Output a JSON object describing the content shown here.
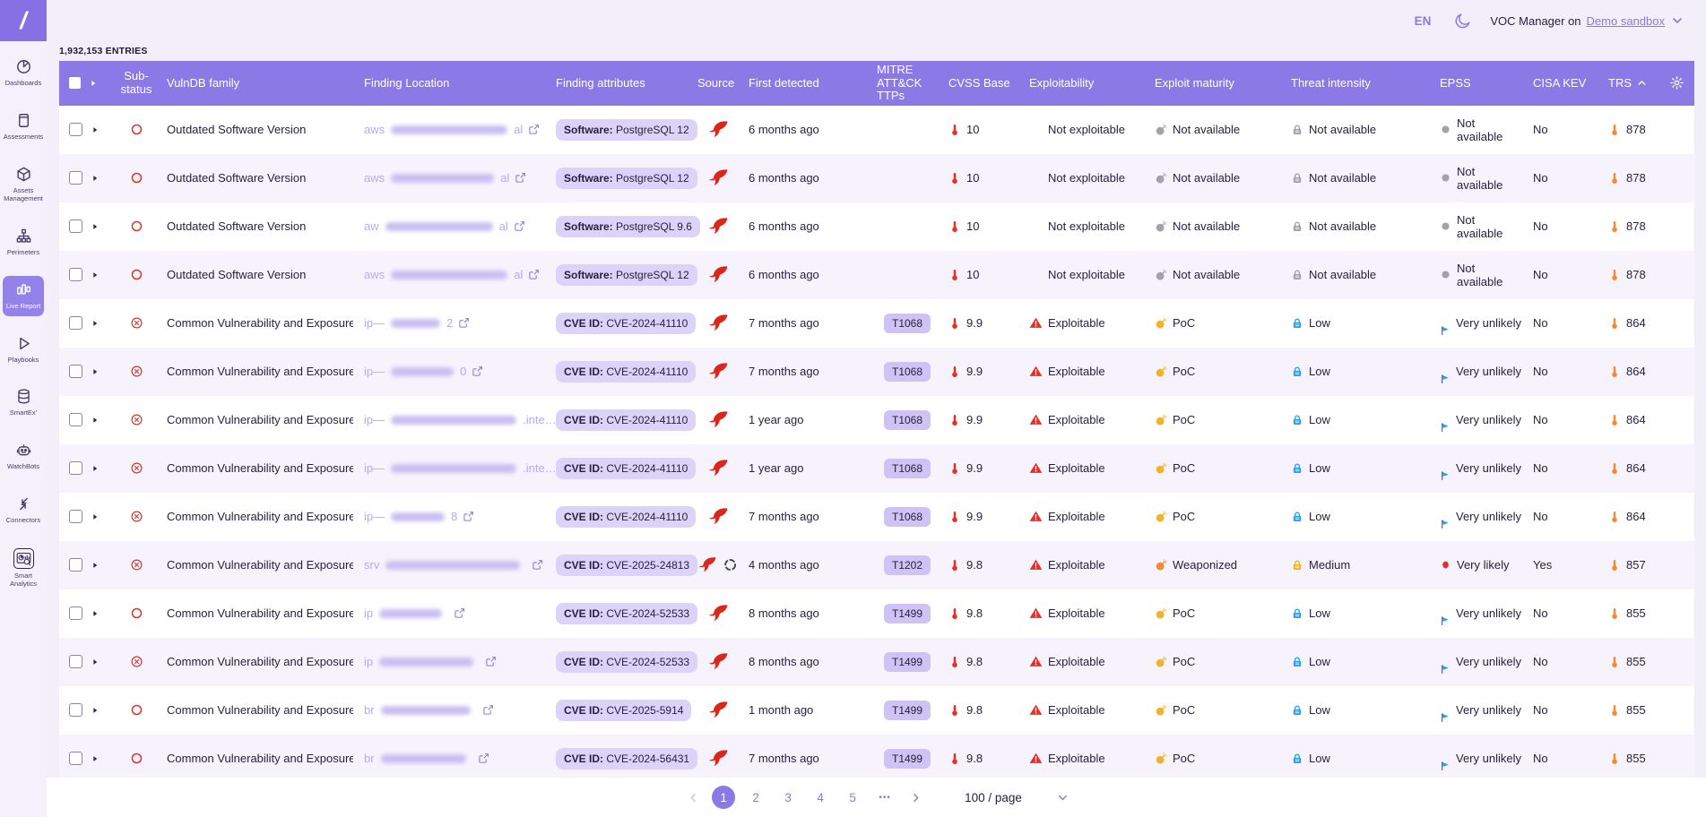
{
  "topbar": {
    "language": "EN",
    "context_prefix": "VOC Manager on",
    "context_link": "Demo sandbox"
  },
  "sidebar": {
    "items": [
      {
        "label": "Dashboards",
        "icon": "pie",
        "active": false,
        "focus_ring": false
      },
      {
        "label": "Assessments",
        "icon": "book",
        "active": false,
        "focus_ring": false
      },
      {
        "label": "Assets Management",
        "icon": "cube",
        "active": false,
        "focus_ring": false
      },
      {
        "label": "Perimeters",
        "icon": "sitemap",
        "active": false,
        "focus_ring": false
      },
      {
        "label": "Live Report",
        "icon": "barchart",
        "active": true,
        "focus_ring": false
      },
      {
        "label": "Playbooks",
        "icon": "play",
        "active": false,
        "focus_ring": false
      },
      {
        "label": "SmartEx'",
        "icon": "database",
        "active": false,
        "focus_ring": false
      },
      {
        "label": "WatchBots",
        "icon": "robot",
        "active": false,
        "focus_ring": false
      },
      {
        "label": "Connectors",
        "icon": "connectors",
        "active": false,
        "focus_ring": false
      },
      {
        "label": "Smart Analytics",
        "icon": "analytics",
        "active": false,
        "focus_ring": true
      }
    ]
  },
  "table": {
    "entries_label": "1,932,153 ENTRIES",
    "columns": [
      {
        "label": "Sub-status"
      },
      {
        "label": "VulnDB family"
      },
      {
        "label": "Finding Location"
      },
      {
        "label": "Finding attributes"
      },
      {
        "label": "Source"
      },
      {
        "label": "First detected"
      },
      {
        "label": "MITRE ATT&CK TTPs"
      },
      {
        "label": "CVSS Base"
      },
      {
        "label": "Exploitability"
      },
      {
        "label": "Exploit maturity"
      },
      {
        "label": "Threat intensity"
      },
      {
        "label": "EPSS"
      },
      {
        "label": "CISA KEV"
      },
      {
        "label": "TRS"
      }
    ],
    "rows": [
      {
        "substatus": "open",
        "family": "Outdated Software Version",
        "loc_prefix": "aws",
        "loc_redact_w": 130,
        "loc_suffix": "al",
        "attr_label": "Software:",
        "attr_value": "PostgreSQL 12",
        "sources": [
          "bird"
        ],
        "detected": "6 months ago",
        "mitre": "",
        "cvss": "10",
        "expl_warn": false,
        "expl_label": "Not exploitable",
        "mat_tone": "grey",
        "mat_label": "Not available",
        "int_tone": "grey",
        "int_label": "Not available",
        "epss_icon": "circle",
        "epss_tone": "grey",
        "epss_label": "Not available",
        "kev": "No",
        "trs": "878"
      },
      {
        "substatus": "open",
        "family": "Outdated Software Version",
        "loc_prefix": "aws",
        "loc_redact_w": 115,
        "loc_suffix": "al",
        "attr_label": "Software:",
        "attr_value": "PostgreSQL 12",
        "sources": [
          "bird"
        ],
        "detected": "6 months ago",
        "mitre": "",
        "cvss": "10",
        "expl_warn": false,
        "expl_label": "Not exploitable",
        "mat_tone": "grey",
        "mat_label": "Not available",
        "int_tone": "grey",
        "int_label": "Not available",
        "epss_icon": "circle",
        "epss_tone": "grey",
        "epss_label": "Not available",
        "kev": "No",
        "trs": "878"
      },
      {
        "substatus": "open",
        "family": "Outdated Software Version",
        "loc_prefix": "aw",
        "loc_redact_w": 120,
        "loc_suffix": "al",
        "attr_label": "Software:",
        "attr_value": "PostgreSQL 9.6",
        "sources": [
          "bird"
        ],
        "detected": "6 months ago",
        "mitre": "",
        "cvss": "10",
        "expl_warn": false,
        "expl_label": "Not exploitable",
        "mat_tone": "grey",
        "mat_label": "Not available",
        "int_tone": "grey",
        "int_label": "Not available",
        "epss_icon": "circle",
        "epss_tone": "grey",
        "epss_label": "Not available",
        "kev": "No",
        "trs": "878"
      },
      {
        "substatus": "open",
        "family": "Outdated Software Version",
        "loc_prefix": "aws",
        "loc_redact_w": 130,
        "loc_suffix": "al",
        "attr_label": "Software:",
        "attr_value": "PostgreSQL 12",
        "sources": [
          "bird"
        ],
        "detected": "6 months ago",
        "mitre": "",
        "cvss": "10",
        "expl_warn": false,
        "expl_label": "Not exploitable",
        "mat_tone": "grey",
        "mat_label": "Not available",
        "int_tone": "grey",
        "int_label": "Not available",
        "epss_icon": "circle",
        "epss_tone": "grey",
        "epss_label": "Not available",
        "kev": "No",
        "trs": "878"
      },
      {
        "substatus": "crossed",
        "family": "Common Vulnerability and Exposure (CVE)",
        "loc_prefix": "ip—",
        "loc_redact_w": 55,
        "loc_suffix": "2",
        "attr_label": "CVE ID:",
        "attr_value": "CVE-2024-41110",
        "sources": [
          "bird"
        ],
        "detected": "7 months ago",
        "mitre": "T1068",
        "cvss": "9.9",
        "expl_warn": true,
        "expl_label": "Exploitable",
        "mat_tone": "yellow",
        "mat_label": "PoC",
        "int_tone": "blue",
        "int_label": "Low",
        "epss_icon": "flag",
        "epss_tone": "blue",
        "epss_label": "Very unlikely",
        "kev": "No",
        "trs": "864"
      },
      {
        "substatus": "crossed",
        "family": "Common Vulnerability and Exposure (CVE)",
        "loc_prefix": "ip—",
        "loc_redact_w": 70,
        "loc_suffix": "0",
        "attr_label": "CVE ID:",
        "attr_value": "CVE-2024-41110",
        "sources": [
          "bird"
        ],
        "detected": "7 months ago",
        "mitre": "T1068",
        "cvss": "9.9",
        "expl_warn": true,
        "expl_label": "Exploitable",
        "mat_tone": "yellow",
        "mat_label": "PoC",
        "int_tone": "blue",
        "int_label": "Low",
        "epss_icon": "flag",
        "epss_tone": "blue",
        "epss_label": "Very unlikely",
        "kev": "No",
        "trs": "864"
      },
      {
        "substatus": "crossed",
        "family": "Common Vulnerability and Exposure (CVE)",
        "loc_prefix": "ip—",
        "loc_redact_w": 140,
        "loc_suffix": ".inte…",
        "attr_label": "CVE ID:",
        "attr_value": "CVE-2024-41110",
        "sources": [
          "bird"
        ],
        "detected": "1 year ago",
        "mitre": "T1068",
        "cvss": "9.9",
        "expl_warn": true,
        "expl_label": "Exploitable",
        "mat_tone": "yellow",
        "mat_label": "PoC",
        "int_tone": "blue",
        "int_label": "Low",
        "epss_icon": "flag",
        "epss_tone": "blue",
        "epss_label": "Very unlikely",
        "kev": "No",
        "trs": "864"
      },
      {
        "substatus": "crossed",
        "family": "Common Vulnerability and Exposure (CVE)",
        "loc_prefix": "ip—",
        "loc_redact_w": 140,
        "loc_suffix": ".inte…",
        "attr_label": "CVE ID:",
        "attr_value": "CVE-2024-41110",
        "sources": [
          "bird"
        ],
        "detected": "1 year ago",
        "mitre": "T1068",
        "cvss": "9.9",
        "expl_warn": true,
        "expl_label": "Exploitable",
        "mat_tone": "yellow",
        "mat_label": "PoC",
        "int_tone": "blue",
        "int_label": "Low",
        "epss_icon": "flag",
        "epss_tone": "blue",
        "epss_label": "Very unlikely",
        "kev": "No",
        "trs": "864"
      },
      {
        "substatus": "crossed",
        "family": "Common Vulnerability and Exposure (CVE)",
        "loc_prefix": "ip—",
        "loc_redact_w": 60,
        "loc_suffix": "8",
        "attr_label": "CVE ID:",
        "attr_value": "CVE-2024-41110",
        "sources": [
          "bird"
        ],
        "detected": "7 months ago",
        "mitre": "T1068",
        "cvss": "9.9",
        "expl_warn": true,
        "expl_label": "Exploitable",
        "mat_tone": "yellow",
        "mat_label": "PoC",
        "int_tone": "blue",
        "int_label": "Low",
        "epss_icon": "flag",
        "epss_tone": "blue",
        "epss_label": "Very unlikely",
        "kev": "No",
        "trs": "864"
      },
      {
        "substatus": "crossed",
        "family": "Common Vulnerability and Exposure (CVE)",
        "loc_prefix": "srv",
        "loc_redact_w": 150,
        "loc_suffix": "",
        "attr_label": "CVE ID:",
        "attr_value": "CVE-2025-24813",
        "sources": [
          "bird",
          "scan"
        ],
        "detected": "4 months ago",
        "mitre": "T1202",
        "cvss": "9.8",
        "expl_warn": true,
        "expl_label": "Exploitable",
        "mat_tone": "orange",
        "mat_label": "Weaponized",
        "int_tone": "yellow",
        "int_label": "Medium",
        "epss_icon": "dot",
        "epss_tone": "red",
        "epss_label": "Very likely",
        "kev": "Yes",
        "trs": "857"
      },
      {
        "substatus": "open",
        "family": "Common Vulnerability and Exposure (CVE)",
        "loc_prefix": "ip",
        "loc_redact_w": 70,
        "loc_suffix": "",
        "attr_label": "CVE ID:",
        "attr_value": "CVE-2024-52533",
        "sources": [
          "bird"
        ],
        "detected": "8 months ago",
        "mitre": "T1499",
        "cvss": "9.8",
        "expl_warn": true,
        "expl_label": "Exploitable",
        "mat_tone": "yellow",
        "mat_label": "PoC",
        "int_tone": "blue",
        "int_label": "Low",
        "epss_icon": "flag",
        "epss_tone": "blue",
        "epss_label": "Very unlikely",
        "kev": "No",
        "trs": "855"
      },
      {
        "substatus": "crossed",
        "family": "Common Vulnerability and Exposure (CVE)",
        "loc_prefix": "ip",
        "loc_redact_w": 105,
        "loc_suffix": "",
        "attr_label": "CVE ID:",
        "attr_value": "CVE-2024-52533",
        "sources": [
          "bird"
        ],
        "detected": "8 months ago",
        "mitre": "T1499",
        "cvss": "9.8",
        "expl_warn": true,
        "expl_label": "Exploitable",
        "mat_tone": "yellow",
        "mat_label": "PoC",
        "int_tone": "blue",
        "int_label": "Low",
        "epss_icon": "flag",
        "epss_tone": "blue",
        "epss_label": "Very unlikely",
        "kev": "No",
        "trs": "855"
      },
      {
        "substatus": "open",
        "family": "Common Vulnerability and Exposure (CVE)",
        "loc_prefix": "br",
        "loc_redact_w": 100,
        "loc_suffix": "",
        "attr_label": "CVE ID:",
        "attr_value": "CVE-2025-5914",
        "sources": [
          "bird"
        ],
        "detected": "1 month ago",
        "mitre": "T1499",
        "cvss": "9.8",
        "expl_warn": true,
        "expl_label": "Exploitable",
        "mat_tone": "yellow",
        "mat_label": "PoC",
        "int_tone": "blue",
        "int_label": "Low",
        "epss_icon": "flag",
        "epss_tone": "blue",
        "epss_label": "Very unlikely",
        "kev": "No",
        "trs": "855"
      },
      {
        "substatus": "open",
        "family": "Common Vulnerability and Exposure (CVE)",
        "loc_prefix": "br",
        "loc_redact_w": 95,
        "loc_suffix": "",
        "attr_label": "CVE ID:",
        "attr_value": "CVE-2024-56431",
        "sources": [
          "bird"
        ],
        "detected": "7 months ago",
        "mitre": "T1499",
        "cvss": "9.8",
        "expl_warn": true,
        "expl_label": "Exploitable",
        "mat_tone": "yellow",
        "mat_label": "PoC",
        "int_tone": "blue",
        "int_label": "Low",
        "epss_icon": "flag",
        "epss_tone": "blue",
        "epss_label": "Very unlikely",
        "kev": "No",
        "trs": "855"
      }
    ]
  },
  "pagination": {
    "pages": [
      "1",
      "2",
      "3",
      "4",
      "5"
    ],
    "active_page": "1",
    "ellipsis": "•••",
    "page_size": "100 / page"
  }
}
